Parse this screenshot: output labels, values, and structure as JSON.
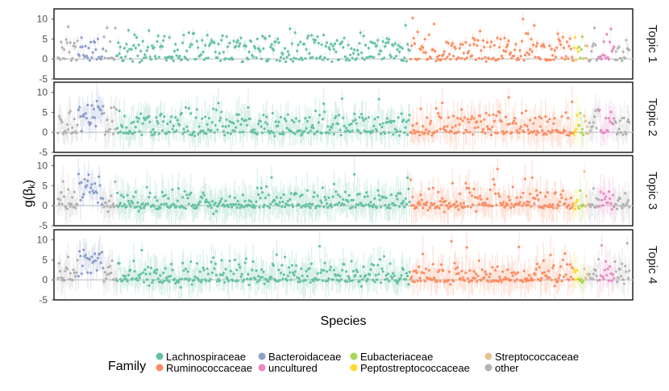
{
  "chart_data": {
    "type": "scatter",
    "title": "",
    "xlabel": "Species",
    "ylabel": "g(β_k)",
    "n_species": 560,
    "ylim": [
      -5,
      12.5
    ],
    "yticks": [
      -5,
      0,
      5,
      10
    ],
    "tick_labels": [
      "-5",
      "0",
      "5",
      "10"
    ],
    "zero_line": 0,
    "facets": [
      {
        "label": "Topic 1",
        "base_noise": 0.6,
        "neutral_mean": 3.2,
        "band": 1.2
      },
      {
        "label": "Topic 2",
        "base_noise": 0.5,
        "neutral_mean": 2.6,
        "band": 3.5
      },
      {
        "label": "Topic 3",
        "base_noise": 0.5,
        "neutral_mean": 1.4,
        "band": 3.8
      },
      {
        "label": "Topic 4",
        "base_noise": 0.5,
        "neutral_mean": 2.0,
        "band": 3.6
      }
    ],
    "families": [
      {
        "name": "other",
        "color": "#b3b3b3",
        "start": 0,
        "end": 20
      },
      {
        "name": "Bacteroidaceae",
        "color": "#8da0cb",
        "start": 20,
        "end": 45
      },
      {
        "name": "other",
        "color": "#b3b3b3",
        "start": 45,
        "end": 58
      },
      {
        "name": "Lachnospiraceae",
        "color": "#66c2a5",
        "start": 58,
        "end": 345
      },
      {
        "name": "Ruminococcaceae",
        "color": "#fc8d62",
        "start": 345,
        "end": 505
      },
      {
        "name": "Peptostreptococcaceae",
        "color": "#ffd92f",
        "start": 505,
        "end": 510
      },
      {
        "name": "Eubacteriaceae",
        "color": "#a6d854",
        "start": 510,
        "end": 515
      },
      {
        "name": "Streptococcaceae",
        "color": "#e5c494",
        "start": 515,
        "end": 520
      },
      {
        "name": "other",
        "color": "#b3b3b3",
        "start": 520,
        "end": 530
      },
      {
        "name": "uncultured",
        "color": "#e78ac3",
        "start": 530,
        "end": 545
      },
      {
        "name": "other",
        "color": "#b3b3b3",
        "start": 545,
        "end": 560
      }
    ],
    "legend": {
      "title": "Family",
      "position": "bottom",
      "entries": [
        {
          "name": "Lachnospiraceae",
          "color": "#66c2a5"
        },
        {
          "name": "Ruminococcaceae",
          "color": "#fc8d62"
        },
        {
          "name": "Bacteroidaceae",
          "color": "#8da0cb"
        },
        {
          "name": "uncultured",
          "color": "#e78ac3"
        },
        {
          "name": "Eubacteriaceae",
          "color": "#a6d854"
        },
        {
          "name": "Peptostreptococcaceae",
          "color": "#ffd92f"
        },
        {
          "name": "Streptococcaceae",
          "color": "#e5c494"
        },
        {
          "name": "other",
          "color": "#b3b3b3"
        }
      ]
    }
  }
}
